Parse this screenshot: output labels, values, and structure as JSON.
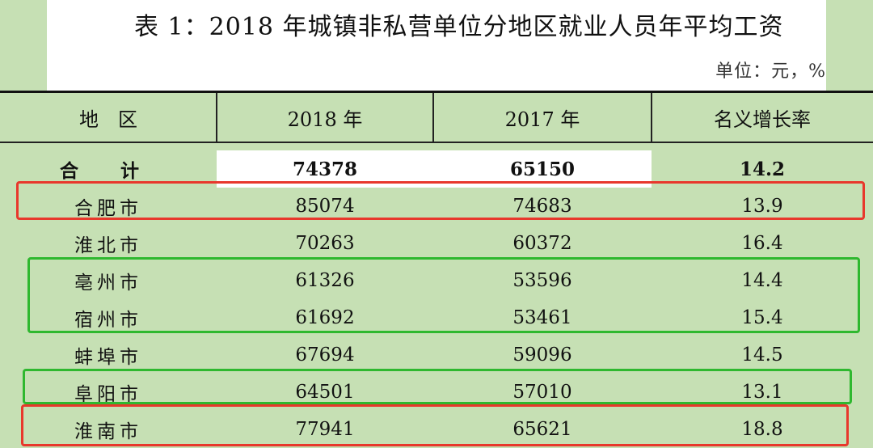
{
  "title": "表 1：2018 年城镇非私营单位分地区就业人员年平均工资",
  "unit": "单位：元，%",
  "header": {
    "region": "地　区",
    "y2018": "2018 年",
    "y2017": "2017 年",
    "growth": "名义增长率"
  },
  "total": {
    "region": "合 计",
    "y2018": "74378",
    "y2017": "65150",
    "growth": "14.2"
  },
  "rows": [
    {
      "region": "合肥市",
      "y2018": "85074",
      "y2017": "74683",
      "growth": "13.9"
    },
    {
      "region": "淮北市",
      "y2018": "70263",
      "y2017": "60372",
      "growth": "16.4"
    },
    {
      "region": "亳州市",
      "y2018": "61326",
      "y2017": "53596",
      "growth": "14.4"
    },
    {
      "region": "宿州市",
      "y2018": "61692",
      "y2017": "53461",
      "growth": "15.4"
    },
    {
      "region": "蚌埠市",
      "y2018": "67694",
      "y2017": "59096",
      "growth": "14.5"
    },
    {
      "region": "阜阳市",
      "y2018": "64501",
      "y2017": "57010",
      "growth": "13.1"
    },
    {
      "region": "淮南市",
      "y2018": "77941",
      "y2017": "65621",
      "growth": "18.8"
    }
  ],
  "colors": {
    "background": "#c6e0b4",
    "highlight_red": "#e8382c",
    "highlight_green": "#2fb82f"
  }
}
